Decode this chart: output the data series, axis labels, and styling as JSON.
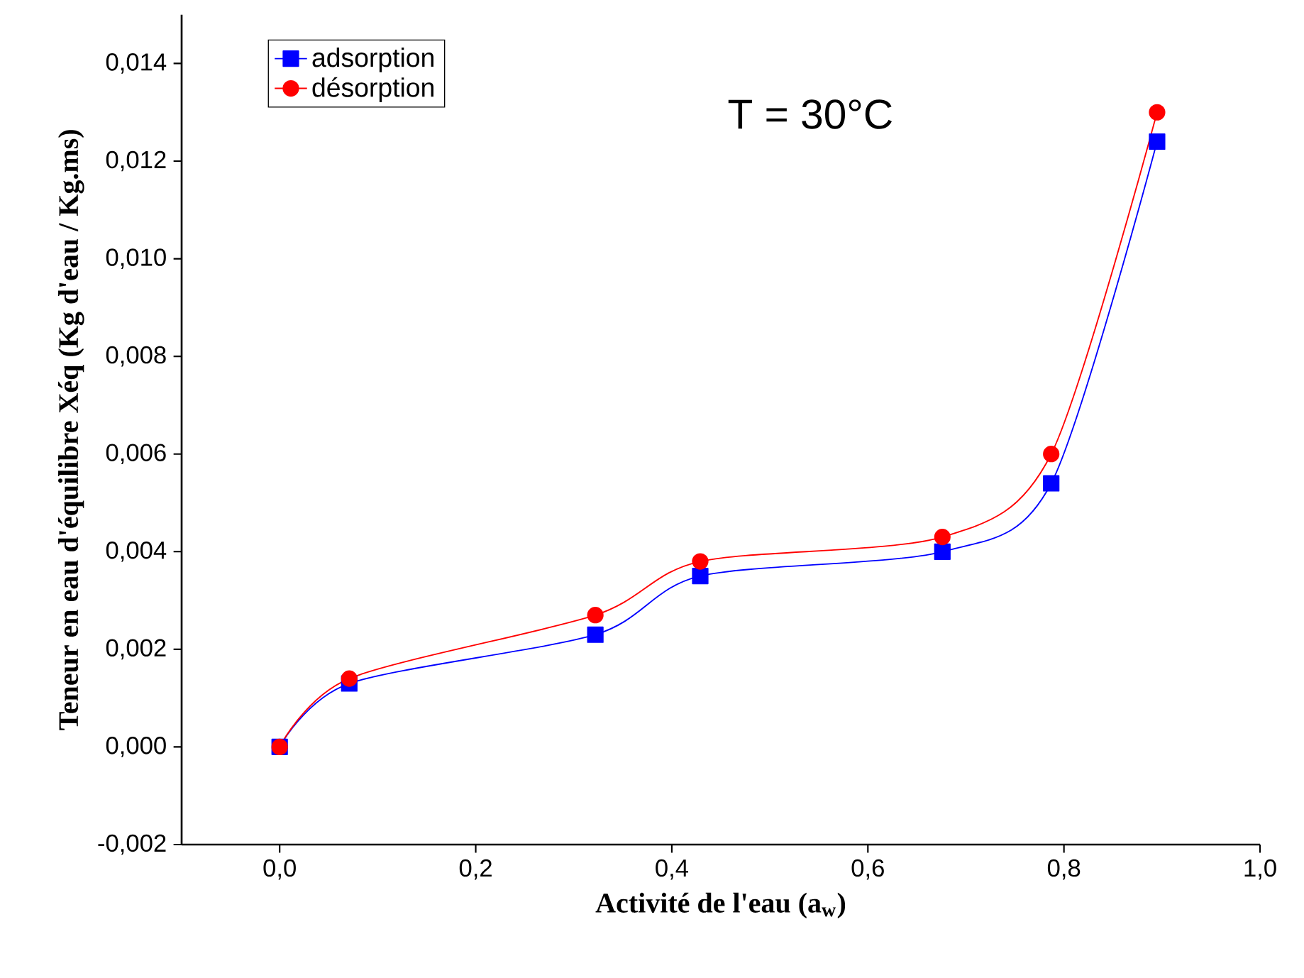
{
  "chart_data": {
    "type": "line",
    "xlabel": "Activité de l'eau (a$_{w}$)",
    "ylabel": "Teneur en eau d'équilibre Xéq (Kg d'eau / Kg.ms)",
    "annotations": [
      "T = 30°C"
    ],
    "x": [
      0,
      0.071,
      0.322,
      0.429,
      0.676,
      0.787,
      0.895
    ],
    "series": [
      {
        "name": "adsorption",
        "color": "#0000ff",
        "marker": "square",
        "values": [
          0,
          0.0013,
          0.0023,
          0.0035,
          0.004,
          0.0054,
          0.0124
        ]
      },
      {
        "name": "désorption",
        "color": "#ff0000",
        "marker": "circle",
        "values": [
          0,
          0.0014,
          0.0027,
          0.0038,
          0.0043,
          0.006,
          0.013
        ]
      }
    ],
    "xlim": [
      -0.1,
      1.0
    ],
    "ylim": [
      -0.002,
      0.015
    ],
    "xticks": [
      {
        "value": 0,
        "label": "0,0"
      },
      {
        "value": 0.2,
        "label": "0,2"
      },
      {
        "value": 0.4,
        "label": "0,4"
      },
      {
        "value": 0.6,
        "label": "0,6"
      },
      {
        "value": 0.8,
        "label": "0,8"
      },
      {
        "value": 1.0,
        "label": "1,0"
      }
    ],
    "yticks": [
      {
        "value": -0.002,
        "label": "-0,002"
      },
      {
        "value": 0,
        "label": "0,000"
      },
      {
        "value": 0.002,
        "label": "0,002"
      },
      {
        "value": 0.004,
        "label": "0,004"
      },
      {
        "value": 0.006,
        "label": "0,006"
      },
      {
        "value": 0.008,
        "label": "0,008"
      },
      {
        "value": 0.01,
        "label": "0,010"
      },
      {
        "value": 0.012,
        "label": "0,012"
      },
      {
        "value": 0.014,
        "label": "0,014"
      }
    ],
    "grid": false,
    "legend": "top left",
    "line_style": "solid"
  }
}
